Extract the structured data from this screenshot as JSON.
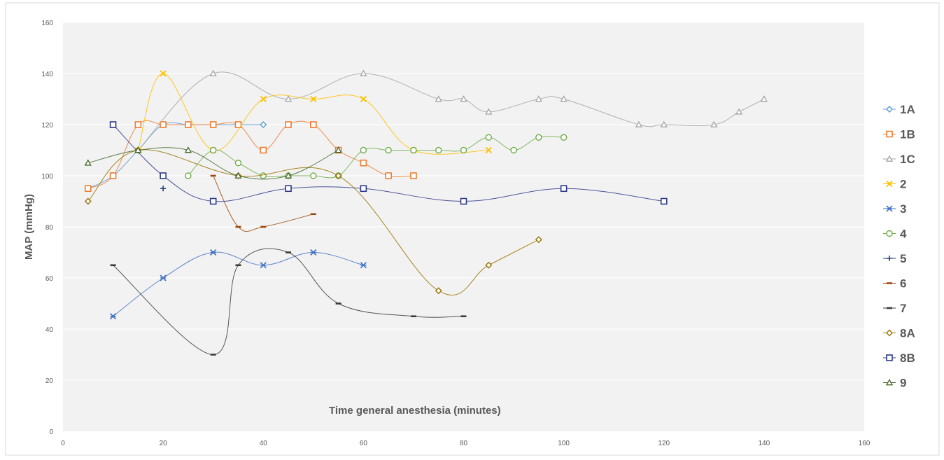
{
  "chart_data": {
    "type": "line",
    "xlabel": "Time general anesthesia  (minutes)",
    "ylabel": "MAP (mmHg)",
    "xlim": [
      0,
      160
    ],
    "ylim": [
      0,
      160
    ],
    "xticks": [
      0,
      20,
      40,
      60,
      80,
      100,
      120,
      140,
      160
    ],
    "yticks": [
      0,
      20,
      40,
      60,
      80,
      100,
      120,
      140,
      160
    ],
    "grid": "horizontal",
    "legend": "right",
    "smooth": true,
    "series": [
      {
        "name": "1A",
        "color": "#5b9bd5",
        "marker": "diamond",
        "x": [
          5,
          10,
          15,
          20,
          25,
          30,
          35,
          40
        ],
        "y": [
          95,
          100,
          110,
          120,
          120,
          120,
          120,
          120
        ]
      },
      {
        "name": "1B",
        "color": "#ed7d31",
        "marker": "square",
        "x": [
          5,
          10,
          15,
          20,
          25,
          30,
          35,
          40,
          45,
          50,
          55,
          60,
          65,
          70
        ],
        "y": [
          95,
          100,
          120,
          120,
          120,
          120,
          120,
          110,
          120,
          120,
          110,
          105,
          100,
          100
        ]
      },
      {
        "name": "1C",
        "color": "#a5a5a5",
        "marker": "triangle",
        "x": [
          15,
          30,
          45,
          60,
          75,
          80,
          85,
          95,
          100,
          115,
          120,
          130,
          135,
          140
        ],
        "y": [
          110,
          140,
          130,
          140,
          130,
          130,
          125,
          130,
          130,
          120,
          120,
          120,
          125,
          130
        ]
      },
      {
        "name": "2",
        "color": "#ffc000",
        "marker": "x",
        "x": [
          15,
          20,
          30,
          40,
          50,
          60,
          70,
          85
        ],
        "y": [
          110,
          140,
          110,
          130,
          130,
          130,
          110,
          110
        ]
      },
      {
        "name": "3",
        "color": "#4472c4",
        "marker": "star",
        "x": [
          10,
          20,
          30,
          40,
          50,
          60
        ],
        "y": [
          45,
          60,
          70,
          65,
          70,
          65
        ]
      },
      {
        "name": "4",
        "color": "#70ad47",
        "marker": "circle",
        "x": [
          25,
          30,
          35,
          40,
          45,
          50,
          55,
          60,
          65,
          70,
          75,
          80,
          85,
          90,
          95,
          100
        ],
        "y": [
          100,
          110,
          105,
          100,
          100,
          100,
          100,
          110,
          110,
          110,
          110,
          110,
          115,
          110,
          115,
          115
        ]
      },
      {
        "name": "5",
        "color": "#264478",
        "marker": "plus",
        "x": [
          20
        ],
        "y": [
          95
        ]
      },
      {
        "name": "6",
        "color": "#9e480e",
        "marker": "dash",
        "x": [
          30,
          35,
          40,
          50
        ],
        "y": [
          100,
          80,
          80,
          85
        ]
      },
      {
        "name": "7",
        "color": "#3b3b3b",
        "marker": "dash",
        "x": [
          10,
          30,
          35,
          45,
          55,
          70,
          80
        ],
        "y": [
          65,
          30,
          65,
          70,
          50,
          45,
          45
        ]
      },
      {
        "name": "8A",
        "color": "#997300",
        "marker": "diamond",
        "x": [
          5,
          15,
          35,
          55,
          75,
          85,
          95
        ],
        "y": [
          90,
          110,
          100,
          100,
          55,
          65,
          75
        ]
      },
      {
        "name": "8B",
        "color": "#2e3a87",
        "marker": "square",
        "x": [
          10,
          20,
          30,
          45,
          60,
          80,
          100,
          120
        ],
        "y": [
          120,
          100,
          90,
          95,
          95,
          90,
          95,
          90
        ]
      },
      {
        "name": "9",
        "color": "#43682b",
        "marker": "triangle",
        "x": [
          5,
          15,
          25,
          35,
          45,
          55
        ],
        "y": [
          105,
          110,
          110,
          100,
          100,
          110
        ]
      }
    ]
  }
}
